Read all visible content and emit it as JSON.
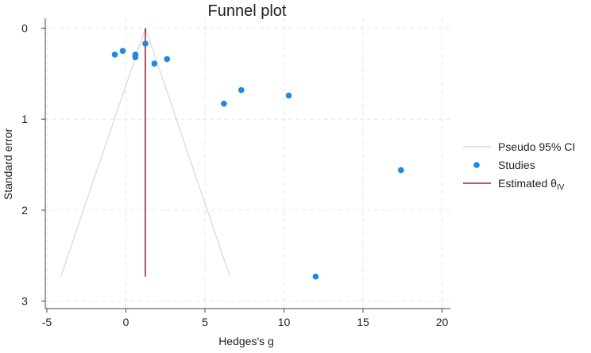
{
  "chart_data": {
    "type": "scatter",
    "title": "Funnel plot",
    "xlabel": "Hedges's g",
    "ylabel": "Standard error",
    "xlim": [
      -5.5,
      20.5
    ],
    "ylim": [
      0,
      3
    ],
    "y_axis_reversed": true,
    "grid": true,
    "legend_position": "right",
    "x_ticks": [
      -5,
      0,
      5,
      10,
      15,
      20
    ],
    "x_tick_labels": [
      "-5",
      "0",
      "5",
      "10",
      "15",
      "20"
    ],
    "y_ticks": [
      0,
      1,
      2,
      3
    ],
    "y_tick_labels": [
      "0",
      "1",
      "2",
      "3"
    ],
    "estimated_theta": 1.23,
    "pseudo_ci": {
      "se_max": 2.73,
      "left_bottom": -4.12,
      "right_bottom": 6.58
    },
    "studies": {
      "x": [
        -0.7,
        -0.2,
        0.6,
        0.6,
        1.23,
        1.8,
        2.6,
        6.2,
        7.3,
        10.3,
        17.4,
        12.0
      ],
      "y": [
        0.29,
        0.25,
        0.29,
        0.32,
        0.17,
        0.39,
        0.34,
        0.83,
        0.68,
        0.74,
        1.56,
        2.73
      ]
    },
    "series": [
      {
        "name": "Pseudo 95% CI",
        "kind": "line",
        "color": "#d7d7d7"
      },
      {
        "name": "Studies",
        "kind": "marker",
        "color": "#1e88e5"
      },
      {
        "name": "Estimated θ",
        "subscript": "IV",
        "kind": "line",
        "color": "#c0143c"
      }
    ]
  }
}
